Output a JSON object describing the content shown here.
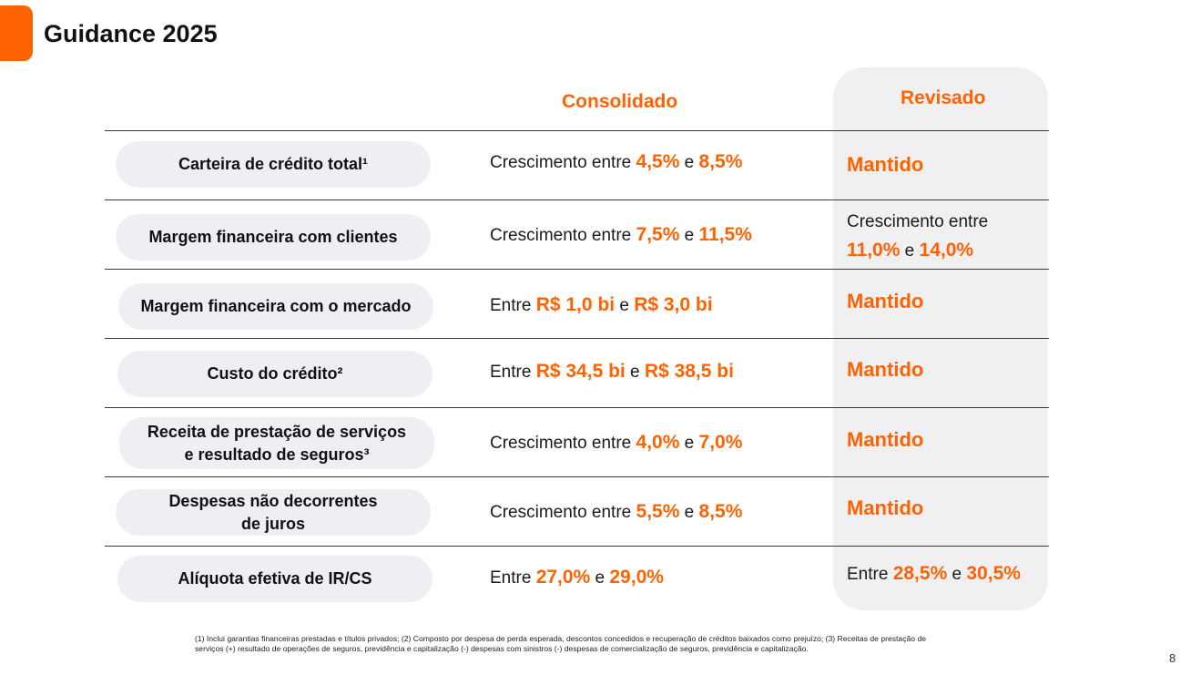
{
  "title": "Guidance 2025",
  "columns": {
    "consolidado": "Consolidado",
    "revisado": "Revisado"
  },
  "rows": [
    {
      "label": "Carteira de crédito total¹",
      "consolidado": {
        "prefix": "Crescimento entre ",
        "v1": "4,5%",
        "mid": " e ",
        "v2": "8,5%"
      },
      "revisado": "Mantido"
    },
    {
      "label": "Margem financeira com clientes",
      "consolidado": {
        "prefix": "Crescimento entre ",
        "v1": "7,5%",
        "mid": " e ",
        "v2": "11,5%"
      },
      "revisado": {
        "line1": "Crescimento entre",
        "v1": "11,0%",
        "mid": " e ",
        "v2": "14,0%"
      }
    },
    {
      "label": "Margem financeira com o mercado",
      "consolidado": {
        "prefix": "Entre ",
        "v1": "R$ 1,0 bi",
        "mid": " e ",
        "v2": "R$ 3,0 bi"
      },
      "revisado": "Mantido"
    },
    {
      "label": "Custo do crédito²",
      "consolidado": {
        "prefix": "Entre ",
        "v1": "R$ 34,5 bi",
        "mid": " e ",
        "v2": "R$ 38,5 bi"
      },
      "revisado": "Mantido"
    },
    {
      "label_line1": "Receita de prestação de serviços",
      "label_line2": "e resultado de seguros³",
      "consolidado": {
        "prefix": "Crescimento entre ",
        "v1": "4,0%",
        "mid": " e ",
        "v2": "7,0%"
      },
      "revisado": "Mantido"
    },
    {
      "label_line1": "Despesas não decorrentes",
      "label_line2": "de juros",
      "consolidado": {
        "prefix": "Crescimento entre ",
        "v1": "5,5%",
        "mid": " e ",
        "v2": "8,5%"
      },
      "revisado": "Mantido"
    },
    {
      "label": "Alíquota efetiva de IR/CS",
      "consolidado": {
        "prefix": "Entre ",
        "v1": "27,0%",
        "mid": " e ",
        "v2": "29,0%"
      },
      "revisado": {
        "prefix": "Entre ",
        "v1": "28,5%",
        "mid": " e ",
        "v2": "30,5%"
      }
    }
  ],
  "footnote_line1": "(1) Inclui garantias financeiras prestadas e títulos privados; (2) Composto por despesa de perda esperada, descontos concedidos e recuperação de créditos baixados como prejuízo; (3) Receitas de prestação de",
  "footnote_line2": "serviços (+) resultado de operações de seguros, previdência e capitalização (-) despesas com sinistros (-) despesas de comercialização de seguros, previdência e capitalização.",
  "page_number": "8",
  "colors": {
    "accent": "#ff6200",
    "pill_bg": "#eeeff3",
    "panel_bg": "#f0f0f2"
  }
}
